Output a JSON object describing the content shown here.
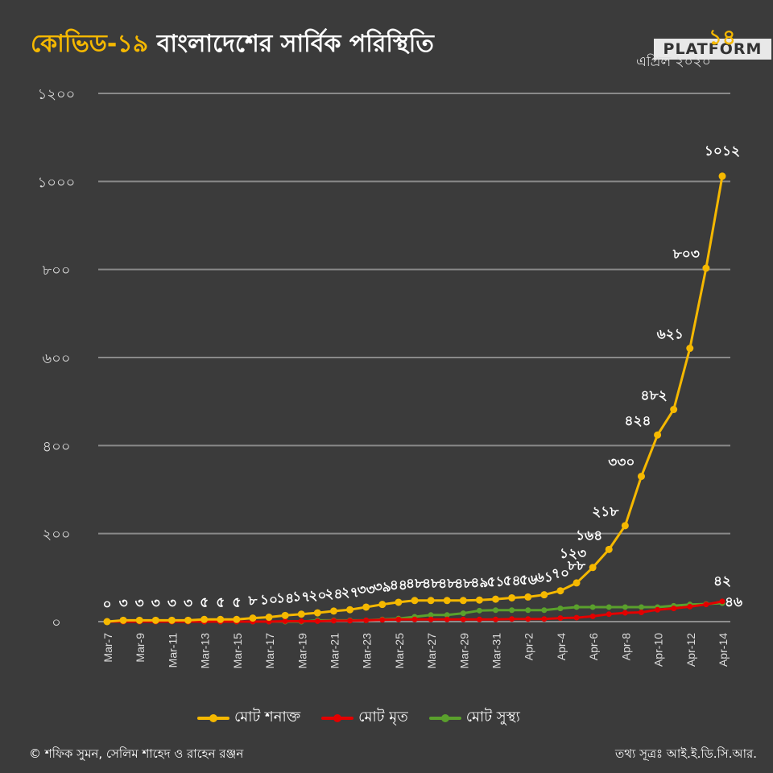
{
  "header": {
    "title_highlight": "কোভিড-১৯",
    "title_rest": "বাংলাদেশের সার্বিক পরিস্থিতি",
    "date_day": "১৪",
    "date_month": "এপ্রিল ২০২০",
    "logo_text": "PLATFORM"
  },
  "footer": {
    "credit": "© শফিক সুমন, সেলিম শাহেদ ও রাহেন রঞ্জন",
    "source": "তথ্য সূত্রঃ আই.ই.ডি.সি.আর."
  },
  "colors": {
    "confirmed": "#f5b800",
    "deaths": "#e30000",
    "recovered": "#5aa02c",
    "grid": "#8a8a8a",
    "background": "#3b3b3b"
  },
  "chart_data": {
    "type": "line",
    "ylim": [
      0,
      1200
    ],
    "yticks": [
      "০",
      "২০০",
      "৪০০",
      "৬০০",
      "৮০০",
      "১০০০",
      "১২০০"
    ],
    "ytick_values": [
      0,
      200,
      400,
      600,
      800,
      1000,
      1200
    ],
    "x": [
      "Mar-7",
      "Mar-8",
      "Mar-9",
      "Mar-10",
      "Mar-11",
      "Mar-12",
      "Mar-13",
      "Mar-14",
      "Mar-15",
      "Mar-16",
      "Mar-17",
      "Mar-18",
      "Mar-19",
      "Mar-20",
      "Mar-21",
      "Mar-22",
      "Mar-23",
      "Mar-24",
      "Mar-25",
      "Mar-26",
      "Mar-27",
      "Mar-28",
      "Mar-29",
      "Mar-30",
      "Mar-31",
      "Apr-1",
      "Apr-2",
      "Apr-3",
      "Apr-4",
      "Apr-5",
      "Apr-6",
      "Apr-7",
      "Apr-8",
      "Apr-9",
      "Apr-10",
      "Apr-11",
      "Apr-12",
      "Apr-13",
      "Apr-14"
    ],
    "xtick_labels": [
      "Mar-7",
      "Mar-9",
      "Mar-11",
      "Mar-13",
      "Mar-15",
      "Mar-17",
      "Mar-19",
      "Mar-21",
      "Mar-23",
      "Mar-25",
      "Mar-27",
      "Mar-29",
      "Mar-31",
      "Apr-2",
      "Apr-4",
      "Apr-6",
      "Apr-8",
      "Apr-10",
      "Apr-12",
      "Apr-14"
    ],
    "series": [
      {
        "key": "confirmed",
        "name": "মোট শনাক্ত",
        "values": [
          0,
          3,
          3,
          3,
          3,
          3,
          5,
          5,
          5,
          8,
          10,
          14,
          17,
          20,
          24,
          27,
          33,
          39,
          44,
          48,
          48,
          48,
          48,
          49,
          51,
          54,
          56,
          61,
          70,
          88,
          123,
          164,
          218,
          330,
          424,
          482,
          621,
          803,
          1012
        ],
        "labels": [
          "০",
          "৩",
          "৩",
          "৩",
          "৩",
          "৩",
          "৫",
          "৫",
          "৫",
          "৮",
          "১০",
          "১৪",
          "১৭",
          "২০",
          "২৪",
          "২৭",
          "৩৩",
          "৩৯",
          "৪৪",
          "৪৮",
          "৪৮",
          "৪৮",
          "৪৮",
          "৪৯",
          "৫১",
          "৫৪",
          "৫৬",
          "৬১",
          "৭০",
          "৮৮",
          "১২৩",
          "১৬৪",
          "২১৮",
          "৩৩০",
          "৪২৪",
          "৪৮২",
          "৬২১",
          "৮০৩",
          "১০১২"
        ]
      },
      {
        "key": "deaths",
        "name": "মোট মৃত",
        "values": [
          0,
          0,
          0,
          0,
          0,
          0,
          0,
          0,
          0,
          0,
          0,
          1,
          1,
          1,
          2,
          2,
          3,
          4,
          5,
          5,
          5,
          5,
          5,
          5,
          5,
          6,
          6,
          6,
          8,
          9,
          12,
          17,
          20,
          21,
          27,
          30,
          34,
          39,
          46
        ],
        "last_label": "৪৬"
      },
      {
        "key": "recovered",
        "name": "মোট সুস্থ্য",
        "values": [
          0,
          0,
          0,
          0,
          0,
          0,
          0,
          0,
          0,
          0,
          0,
          0,
          0,
          3,
          3,
          3,
          3,
          5,
          7,
          11,
          15,
          15,
          19,
          25,
          26,
          26,
          26,
          26,
          30,
          33,
          33,
          33,
          33,
          33,
          33,
          36,
          39,
          40,
          42
        ],
        "last_label": "৪২"
      }
    ]
  }
}
